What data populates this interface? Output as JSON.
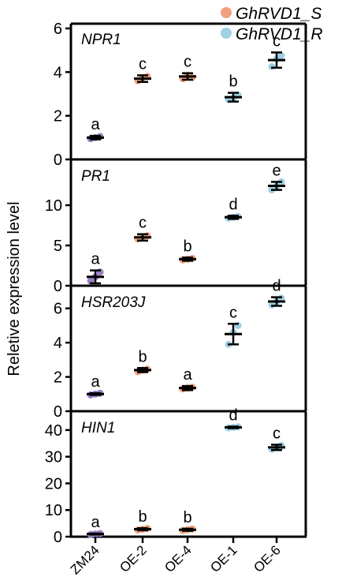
{
  "chart_data": {
    "type": "scatter",
    "ylabel": "Reletive expression level",
    "categories": [
      "ZM24",
      "OE-2",
      "OE-4",
      "OE-1",
      "OE-6"
    ],
    "legend": {
      "placement": "top-right",
      "entries": [
        {
          "label": "GhRVD1_S",
          "color": "#f0a07c"
        },
        {
          "label": "GhRVD1_R",
          "color": "#9fd0e3"
        }
      ]
    },
    "group_colors": [
      "#9b7fc6",
      "#f0a07c",
      "#f0a07c",
      "#9fd0e3",
      "#9fd0e3"
    ],
    "panels": [
      {
        "gene": "NPR1",
        "ylim": [
          0,
          6
        ],
        "yticks": [
          0,
          2,
          4,
          6
        ],
        "means": [
          1.0,
          3.7,
          3.8,
          2.85,
          4.55
        ],
        "errors": [
          0.08,
          0.15,
          0.15,
          0.2,
          0.35
        ],
        "points": [
          [
            0.95,
            1.0,
            1.05
          ],
          [
            3.6,
            3.75,
            3.8
          ],
          [
            3.7,
            3.85,
            3.75
          ],
          [
            2.75,
            2.8,
            2.95
          ],
          [
            4.25,
            4.6,
            4.75
          ]
        ],
        "letters": [
          "a",
          "c",
          "c",
          "b",
          "c"
        ]
      },
      {
        "gene": "PR1",
        "ylim": [
          0,
          15
        ],
        "yticks": [
          0,
          5,
          10
        ],
        "means": [
          1.1,
          6.0,
          3.3,
          8.5,
          12.4
        ],
        "errors": [
          0.8,
          0.4,
          0.2,
          0.2,
          0.5
        ],
        "points": [
          [
            0.6,
            1.1,
            1.7
          ],
          [
            5.8,
            6.0,
            6.2
          ],
          [
            3.2,
            3.3,
            3.4
          ],
          [
            8.4,
            8.5,
            8.6
          ],
          [
            11.9,
            12.4,
            12.9
          ]
        ],
        "letters": [
          "a",
          "c",
          "b",
          "d",
          "e"
        ]
      },
      {
        "gene": "HSR203J",
        "ylim": [
          0,
          7
        ],
        "yticks": [
          0,
          2,
          4,
          6
        ],
        "means": [
          1.0,
          2.4,
          1.35,
          4.5,
          6.4
        ],
        "errors": [
          0.05,
          0.12,
          0.12,
          0.6,
          0.25
        ],
        "points": [
          [
            0.95,
            1.0,
            1.05
          ],
          [
            2.3,
            2.4,
            2.45
          ],
          [
            1.3,
            1.35,
            1.4
          ],
          [
            3.9,
            4.6,
            5.0
          ],
          [
            6.2,
            6.4,
            6.6
          ]
        ],
        "letters": [
          "a",
          "b",
          "a",
          "c",
          "d"
        ]
      },
      {
        "gene": "HIN1",
        "ylim": [
          0,
          45
        ],
        "yticks": [
          0,
          10,
          20,
          30,
          40
        ],
        "means": [
          1.0,
          2.8,
          2.6,
          41.0,
          33.5
        ],
        "errors": [
          0.2,
          0.4,
          0.4,
          0.3,
          1.0
        ],
        "points": [
          [
            0.8,
            1.0,
            1.2
          ],
          [
            2.5,
            2.8,
            3.1
          ],
          [
            2.3,
            2.6,
            2.9
          ],
          [
            40.8,
            41.0,
            41.2
          ],
          [
            32.8,
            33.5,
            34.2
          ]
        ],
        "letters": [
          "a",
          "b",
          "b",
          "d",
          "c"
        ]
      }
    ]
  }
}
